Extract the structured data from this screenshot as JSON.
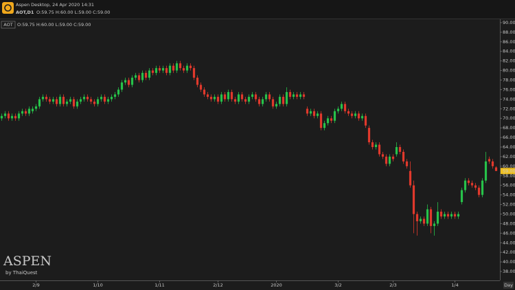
{
  "header": {
    "app_title": "Aspen Desktop, 24 Apr 2020 14:31",
    "symbol_timeframe": "AOT,D1",
    "ohlc": "O:59.75 H:60.00 L:59.00 C:59.00"
  },
  "chart_data": {
    "type": "candlestick",
    "symbol": "AOT",
    "ohlc_label": "O:59.75 H:60.00 L:59.00 C:59.00",
    "watermark": "ASPEN",
    "watermark_sub": "by ThaiQuest",
    "x_axis_label": "Day",
    "up_color": "#27c24a",
    "down_color": "#e0392c",
    "grid": false,
    "ylim": [
      37,
      91
    ],
    "yticks": [
      {
        "value": 38,
        "label": "38.00"
      },
      {
        "value": 40,
        "label": "40.00"
      },
      {
        "value": 42,
        "label": "42.00"
      },
      {
        "value": 44,
        "label": "44.00"
      },
      {
        "value": 46,
        "label": "46.00"
      },
      {
        "value": 48,
        "label": "48.00"
      },
      {
        "value": 50,
        "label": "50.00"
      },
      {
        "value": 52,
        "label": "52.00"
      },
      {
        "value": 54,
        "label": "54.00"
      },
      {
        "value": 56,
        "label": "56.00"
      },
      {
        "value": 58,
        "label": "58.00"
      },
      {
        "value": 60,
        "label": "60.00"
      },
      {
        "value": 62,
        "label": "62.00"
      },
      {
        "value": 64,
        "label": "64.00"
      },
      {
        "value": 66,
        "label": "66.00"
      },
      {
        "value": 68,
        "label": "68.00"
      },
      {
        "value": 70,
        "label": "70.00"
      },
      {
        "value": 72,
        "label": "72.00"
      },
      {
        "value": 74,
        "label": "74.00"
      },
      {
        "value": 76,
        "label": "76.00"
      },
      {
        "value": 78,
        "label": "78.00"
      },
      {
        "value": 80,
        "label": "80.00"
      },
      {
        "value": 82,
        "label": "82.00"
      },
      {
        "value": 84,
        "label": "84.00"
      },
      {
        "value": 86,
        "label": "86.00"
      },
      {
        "value": 88,
        "label": "88.00"
      },
      {
        "value": 90,
        "label": "90.00"
      }
    ],
    "xticks": [
      {
        "value": 10,
        "label": "2/9"
      },
      {
        "value": 28,
        "label": "1/10"
      },
      {
        "value": 46,
        "label": "1/11"
      },
      {
        "value": 63,
        "label": "2/12"
      },
      {
        "value": 80,
        "label": "2020"
      },
      {
        "value": 98,
        "label": "3/2"
      },
      {
        "value": 114,
        "label": "2/3"
      },
      {
        "value": 132,
        "label": "1/4"
      }
    ],
    "last_price": {
      "value": 59,
      "label": "59.00"
    },
    "open": [
      70,
      70.5,
      71,
      70,
      70.5,
      70,
      71,
      71.5,
      71,
      71.5,
      72,
      72.5,
      74,
      74.5,
      74,
      73.5,
      74,
      73,
      74.5,
      73,
      73.5,
      74,
      72.5,
      73.5,
      74,
      74.5,
      74,
      73.5,
      73,
      74,
      74.5,
      73.5,
      74,
      74.5,
      75,
      76,
      77.5,
      78,
      77,
      78.5,
      79,
      78,
      79.5,
      78.5,
      80,
      79.5,
      80.5,
      80,
      80.5,
      79.5,
      81,
      80,
      81.5,
      80.5,
      80,
      81,
      80.5,
      78.5,
      77,
      76,
      75,
      74.5,
      74,
      74.5,
      73.5,
      75,
      74,
      75.5,
      74,
      73.5,
      75,
      74,
      73.5,
      74.5,
      75,
      74,
      73,
      74,
      75,
      74,
      72.5,
      73,
      74.5,
      73,
      75.5,
      74.5,
      75,
      74.5,
      75,
      72,
      71,
      71.5,
      70.5,
      71,
      68,
      69,
      70,
      69.5,
      71.5,
      72,
      73,
      71.5,
      71,
      70.5,
      71,
      70,
      70.5,
      68,
      65,
      64,
      64.5,
      62.5,
      62,
      60.5,
      62,
      62.5,
      64,
      63,
      61,
      59,
      56,
      50,
      48.5,
      49,
      48,
      51,
      47.5,
      48,
      50.5,
      49.5,
      50,
      49.5,
      50,
      49.5,
      52.5,
      55,
      57,
      56.5,
      56,
      55.5,
      54,
      57,
      61.5,
      61,
      59.75
    ],
    "high": [
      71,
      71.5,
      71.5,
      71,
      71,
      71.5,
      72,
      72,
      72.5,
      72.5,
      73,
      74.5,
      75,
      75,
      74.5,
      74.5,
      74.5,
      75,
      75,
      74,
      74.5,
      74.5,
      74,
      74.5,
      75,
      75,
      74.5,
      74,
      74.5,
      75,
      75,
      74.5,
      75,
      75.5,
      76.5,
      78,
      78.5,
      78.5,
      79,
      79.5,
      79.5,
      80,
      80,
      80.5,
      80.5,
      81,
      81,
      81,
      81,
      81.5,
      81.5,
      82,
      82,
      81,
      81.5,
      81.5,
      81,
      79,
      77.5,
      76.5,
      75.5,
      75,
      75,
      75,
      75.5,
      75.5,
      76,
      76,
      74.5,
      75.5,
      75.5,
      74.5,
      75,
      75.5,
      75.5,
      74.5,
      74.5,
      75.5,
      75.5,
      74.5,
      73.5,
      75,
      75,
      76.5,
      76,
      75.5,
      75.5,
      75.5,
      75.5,
      72.5,
      72,
      72,
      71.5,
      71.5,
      69.5,
      70.5,
      70.5,
      72,
      72.5,
      73.5,
      73.5,
      72,
      71.5,
      71.5,
      71.5,
      71,
      71,
      68.5,
      65.5,
      65,
      65,
      63,
      62.5,
      62.5,
      62.5,
      65,
      64.5,
      63.5,
      61.5,
      61,
      57,
      50.5,
      49.5,
      49.5,
      52,
      51.5,
      48.5,
      52.5,
      51,
      50.5,
      50.5,
      50.5,
      50.5,
      50.5,
      55.5,
      57.5,
      57.5,
      57,
      56.5,
      56,
      57.5,
      63,
      62,
      61.5,
      60
    ],
    "low": [
      69.5,
      70,
      69.5,
      69.5,
      69.5,
      69.5,
      70.5,
      70.5,
      70.5,
      71,
      71.5,
      72,
      73.5,
      73.5,
      73,
      73,
      72.5,
      72.5,
      72.5,
      72.5,
      73,
      72,
      72,
      73,
      73.5,
      73.5,
      73,
      72.5,
      72.5,
      73.5,
      73,
      73,
      73.5,
      74,
      74.5,
      75.5,
      77,
      76.5,
      76.5,
      78,
      77.5,
      77.5,
      78,
      78,
      79,
      79,
      79.5,
      79.5,
      79,
      79,
      79.5,
      79.5,
      80,
      79.5,
      79.5,
      80,
      78,
      76.5,
      75.5,
      74.5,
      74,
      73.5,
      73.5,
      73,
      73,
      73.5,
      73.5,
      73.5,
      73,
      73,
      73.5,
      73,
      73,
      74,
      73.5,
      72.5,
      72.5,
      73.5,
      73.5,
      72,
      72,
      72.5,
      72.5,
      72.5,
      74,
      74,
      74,
      74,
      74,
      70.5,
      70.5,
      70,
      70,
      67.5,
      67.5,
      68.5,
      69,
      69,
      71,
      71.5,
      71,
      70.5,
      70,
      70,
      69.5,
      69.5,
      68,
      64.5,
      63.5,
      63.5,
      62,
      61.5,
      60,
      60,
      61,
      62,
      62.5,
      60.5,
      59.5,
      55.5,
      46,
      45.5,
      48,
      47.5,
      47.5,
      46,
      45.5,
      47.5,
      49,
      49,
      49,
      49,
      49,
      49,
      52,
      54.5,
      56,
      55.5,
      55,
      53.5,
      53.5,
      56.5,
      60.5,
      59.5,
      59
    ],
    "close": [
      70.5,
      71,
      70,
      70.5,
      70,
      71,
      71.5,
      71,
      72,
      72,
      72.5,
      74,
      74.5,
      74,
      73.5,
      74,
      73,
      74.5,
      73,
      73.5,
      74,
      72.5,
      73.5,
      74,
      74.5,
      74,
      73.5,
      73,
      74,
      74.5,
      73.5,
      74,
      74.5,
      75,
      76,
      77.5,
      78,
      77,
      78.5,
      79,
      78,
      79.5,
      78.5,
      80,
      79.5,
      80.5,
      80,
      80.5,
      79.5,
      81,
      80,
      81.5,
      80.5,
      80,
      81,
      80.5,
      78.5,
      77,
      76,
      75,
      74.5,
      74,
      74.5,
      73.5,
      75,
      74,
      75.5,
      74,
      73.5,
      75,
      74,
      73.5,
      74.5,
      75,
      74,
      73,
      74,
      75,
      74,
      72.5,
      73,
      74.5,
      73,
      75.5,
      74.5,
      75,
      74.5,
      75,
      74.5,
      71,
      71.5,
      70.5,
      71,
      68,
      69,
      70,
      69.5,
      71.5,
      72,
      73,
      71.5,
      71,
      70.5,
      71,
      70,
      70.5,
      68.5,
      65,
      64,
      64.5,
      62.5,
      62,
      60.5,
      62,
      61.5,
      64,
      63,
      61,
      60,
      56,
      50,
      48.5,
      49,
      48,
      51,
      47.5,
      48,
      50.5,
      49.5,
      50,
      49.5,
      50,
      49.5,
      50,
      55,
      57,
      56.5,
      56,
      55.5,
      54,
      57,
      61,
      61,
      60,
      59
    ]
  }
}
